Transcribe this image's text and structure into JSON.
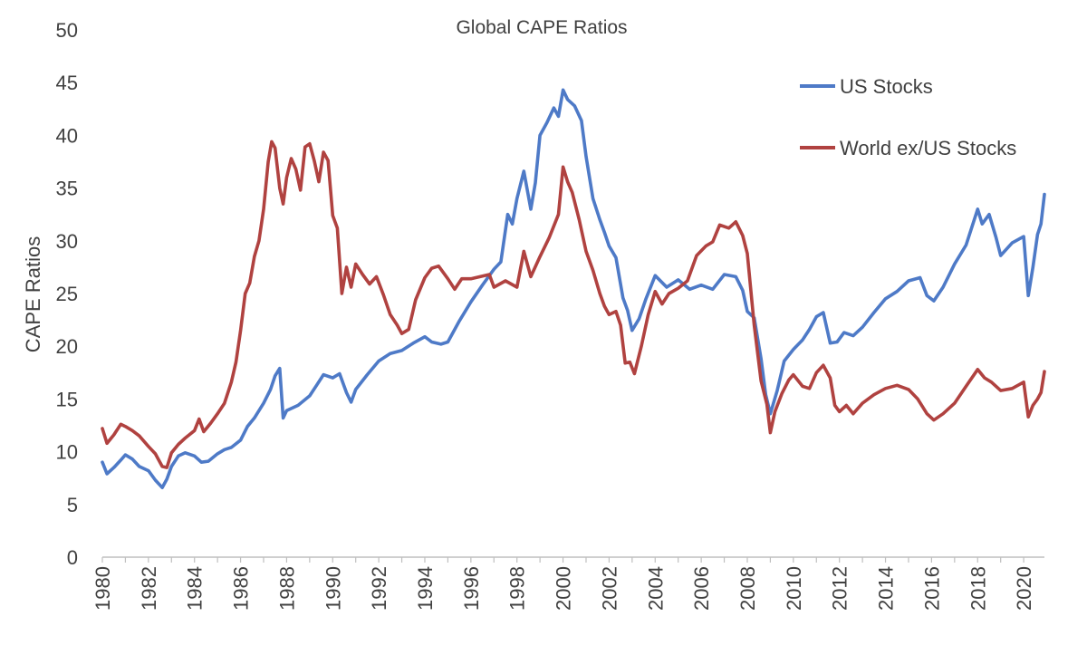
{
  "chart_data": {
    "type": "line",
    "title": "Global CAPE Ratios",
    "ylabel": "CAPE Ratios",
    "xlabel": "",
    "xlim": [
      1980,
      2020.9
    ],
    "ylim": [
      0,
      50
    ],
    "yticks": [
      "0",
      "5",
      "10",
      "15",
      "20",
      "25",
      "30",
      "35",
      "40",
      "45",
      "50"
    ],
    "xticks": [
      "1980",
      "1982",
      "1984",
      "1986",
      "1988",
      "1990",
      "1992",
      "1994",
      "1996",
      "1998",
      "2000",
      "2002",
      "2004",
      "2006",
      "2008",
      "2010",
      "2012",
      "2014",
      "2016",
      "2018",
      "2020"
    ],
    "grid": false,
    "legend_position": "top-right",
    "series": [
      {
        "name": "US Stocks",
        "color": "#4E7AC7",
        "points": [
          [
            1980.0,
            9.0
          ],
          [
            1980.2,
            7.9
          ],
          [
            1980.5,
            8.5
          ],
          [
            1980.8,
            9.2
          ],
          [
            1981.0,
            9.7
          ],
          [
            1981.3,
            9.3
          ],
          [
            1981.6,
            8.6
          ],
          [
            1982.0,
            8.2
          ],
          [
            1982.3,
            7.3
          ],
          [
            1982.6,
            6.6
          ],
          [
            1982.8,
            7.4
          ],
          [
            1983.0,
            8.6
          ],
          [
            1983.3,
            9.6
          ],
          [
            1983.6,
            9.9
          ],
          [
            1984.0,
            9.6
          ],
          [
            1984.3,
            9.0
          ],
          [
            1984.6,
            9.1
          ],
          [
            1985.0,
            9.8
          ],
          [
            1985.3,
            10.2
          ],
          [
            1985.6,
            10.4
          ],
          [
            1986.0,
            11.1
          ],
          [
            1986.3,
            12.4
          ],
          [
            1986.6,
            13.2
          ],
          [
            1987.0,
            14.6
          ],
          [
            1987.3,
            15.9
          ],
          [
            1987.5,
            17.2
          ],
          [
            1987.7,
            17.9
          ],
          [
            1987.85,
            13.2
          ],
          [
            1988.0,
            13.9
          ],
          [
            1988.5,
            14.4
          ],
          [
            1989.0,
            15.3
          ],
          [
            1989.3,
            16.3
          ],
          [
            1989.6,
            17.3
          ],
          [
            1990.0,
            17.0
          ],
          [
            1990.3,
            17.4
          ],
          [
            1990.6,
            15.6
          ],
          [
            1990.8,
            14.7
          ],
          [
            1991.0,
            15.9
          ],
          [
            1991.5,
            17.3
          ],
          [
            1992.0,
            18.6
          ],
          [
            1992.5,
            19.3
          ],
          [
            1993.0,
            19.6
          ],
          [
            1993.5,
            20.3
          ],
          [
            1994.0,
            20.9
          ],
          [
            1994.3,
            20.4
          ],
          [
            1994.7,
            20.2
          ],
          [
            1995.0,
            20.4
          ],
          [
            1995.5,
            22.4
          ],
          [
            1996.0,
            24.2
          ],
          [
            1996.5,
            25.8
          ],
          [
            1997.0,
            27.3
          ],
          [
            1997.3,
            28.0
          ],
          [
            1997.6,
            32.5
          ],
          [
            1997.8,
            31.6
          ],
          [
            1998.0,
            34.0
          ],
          [
            1998.3,
            36.6
          ],
          [
            1998.6,
            33.0
          ],
          [
            1998.8,
            35.5
          ],
          [
            1999.0,
            40.0
          ],
          [
            1999.3,
            41.2
          ],
          [
            1999.6,
            42.6
          ],
          [
            1999.8,
            41.8
          ],
          [
            2000.0,
            44.3
          ],
          [
            2000.2,
            43.4
          ],
          [
            2000.5,
            42.8
          ],
          [
            2000.8,
            41.4
          ],
          [
            2001.0,
            38.0
          ],
          [
            2001.3,
            34.0
          ],
          [
            2001.6,
            32.0
          ],
          [
            2001.8,
            30.8
          ],
          [
            2002.0,
            29.5
          ],
          [
            2002.3,
            28.4
          ],
          [
            2002.6,
            24.6
          ],
          [
            2002.8,
            23.4
          ],
          [
            2003.0,
            21.5
          ],
          [
            2003.3,
            22.6
          ],
          [
            2003.6,
            24.5
          ],
          [
            2004.0,
            26.7
          ],
          [
            2004.5,
            25.6
          ],
          [
            2005.0,
            26.3
          ],
          [
            2005.5,
            25.4
          ],
          [
            2006.0,
            25.8
          ],
          [
            2006.5,
            25.4
          ],
          [
            2007.0,
            26.8
          ],
          [
            2007.5,
            26.6
          ],
          [
            2007.8,
            25.3
          ],
          [
            2008.0,
            23.3
          ],
          [
            2008.3,
            22.7
          ],
          [
            2008.6,
            18.8
          ],
          [
            2008.8,
            15.4
          ],
          [
            2009.0,
            13.6
          ],
          [
            2009.3,
            15.8
          ],
          [
            2009.6,
            18.6
          ],
          [
            2010.0,
            19.7
          ],
          [
            2010.4,
            20.6
          ],
          [
            2010.7,
            21.6
          ],
          [
            2011.0,
            22.8
          ],
          [
            2011.3,
            23.2
          ],
          [
            2011.6,
            20.3
          ],
          [
            2011.9,
            20.4
          ],
          [
            2012.2,
            21.3
          ],
          [
            2012.6,
            21.0
          ],
          [
            2013.0,
            21.8
          ],
          [
            2013.5,
            23.2
          ],
          [
            2014.0,
            24.5
          ],
          [
            2014.5,
            25.2
          ],
          [
            2015.0,
            26.2
          ],
          [
            2015.5,
            26.5
          ],
          [
            2015.8,
            24.8
          ],
          [
            2016.1,
            24.3
          ],
          [
            2016.5,
            25.6
          ],
          [
            2017.0,
            27.8
          ],
          [
            2017.5,
            29.6
          ],
          [
            2018.0,
            33.0
          ],
          [
            2018.2,
            31.6
          ],
          [
            2018.5,
            32.5
          ],
          [
            2018.8,
            30.3
          ],
          [
            2019.0,
            28.6
          ],
          [
            2019.5,
            29.8
          ],
          [
            2020.0,
            30.4
          ],
          [
            2020.2,
            24.8
          ],
          [
            2020.4,
            27.5
          ],
          [
            2020.6,
            30.6
          ],
          [
            2020.75,
            31.6
          ],
          [
            2020.9,
            34.4
          ]
        ]
      },
      {
        "name": "World ex/US Stocks",
        "color": "#B04240",
        "points": [
          [
            1980.0,
            12.2
          ],
          [
            1980.2,
            10.8
          ],
          [
            1980.5,
            11.6
          ],
          [
            1980.8,
            12.6
          ],
          [
            1981.0,
            12.4
          ],
          [
            1981.3,
            12.0
          ],
          [
            1981.6,
            11.5
          ],
          [
            1982.0,
            10.5
          ],
          [
            1982.3,
            9.8
          ],
          [
            1982.6,
            8.6
          ],
          [
            1982.8,
            8.5
          ],
          [
            1983.0,
            9.9
          ],
          [
            1983.3,
            10.7
          ],
          [
            1983.6,
            11.3
          ],
          [
            1984.0,
            12.0
          ],
          [
            1984.2,
            13.1
          ],
          [
            1984.4,
            11.9
          ],
          [
            1984.7,
            12.7
          ],
          [
            1985.0,
            13.6
          ],
          [
            1985.3,
            14.6
          ],
          [
            1985.6,
            16.6
          ],
          [
            1985.8,
            18.5
          ],
          [
            1986.0,
            21.5
          ],
          [
            1986.2,
            25.0
          ],
          [
            1986.4,
            26.0
          ],
          [
            1986.6,
            28.5
          ],
          [
            1986.8,
            30.0
          ],
          [
            1987.0,
            33.0
          ],
          [
            1987.2,
            37.5
          ],
          [
            1987.35,
            39.4
          ],
          [
            1987.5,
            38.8
          ],
          [
            1987.7,
            35.0
          ],
          [
            1987.85,
            33.5
          ],
          [
            1988.0,
            36.0
          ],
          [
            1988.2,
            37.8
          ],
          [
            1988.4,
            36.8
          ],
          [
            1988.6,
            34.8
          ],
          [
            1988.8,
            38.9
          ],
          [
            1989.0,
            39.2
          ],
          [
            1989.2,
            37.6
          ],
          [
            1989.4,
            35.6
          ],
          [
            1989.6,
            38.4
          ],
          [
            1989.8,
            37.6
          ],
          [
            1990.0,
            32.4
          ],
          [
            1990.2,
            31.2
          ],
          [
            1990.4,
            25.0
          ],
          [
            1990.6,
            27.5
          ],
          [
            1990.8,
            25.6
          ],
          [
            1991.0,
            27.8
          ],
          [
            1991.3,
            26.8
          ],
          [
            1991.6,
            25.9
          ],
          [
            1991.9,
            26.6
          ],
          [
            1992.2,
            24.9
          ],
          [
            1992.5,
            23.0
          ],
          [
            1992.8,
            22.0
          ],
          [
            1993.0,
            21.2
          ],
          [
            1993.3,
            21.6
          ],
          [
            1993.6,
            24.4
          ],
          [
            1994.0,
            26.5
          ],
          [
            1994.3,
            27.4
          ],
          [
            1994.6,
            27.6
          ],
          [
            1995.0,
            26.4
          ],
          [
            1995.3,
            25.4
          ],
          [
            1995.6,
            26.4
          ],
          [
            1996.0,
            26.4
          ],
          [
            1996.4,
            26.6
          ],
          [
            1996.8,
            26.8
          ],
          [
            1997.0,
            25.6
          ],
          [
            1997.5,
            26.2
          ],
          [
            1998.0,
            25.6
          ],
          [
            1998.3,
            29.0
          ],
          [
            1998.6,
            26.6
          ],
          [
            1999.0,
            28.5
          ],
          [
            1999.4,
            30.3
          ],
          [
            1999.8,
            32.5
          ],
          [
            2000.0,
            37.0
          ],
          [
            2000.2,
            35.6
          ],
          [
            2000.4,
            34.6
          ],
          [
            2000.7,
            32.0
          ],
          [
            2001.0,
            29.0
          ],
          [
            2001.3,
            27.2
          ],
          [
            2001.6,
            25.0
          ],
          [
            2001.8,
            23.8
          ],
          [
            2002.0,
            23.0
          ],
          [
            2002.3,
            23.3
          ],
          [
            2002.5,
            22.0
          ],
          [
            2002.7,
            18.4
          ],
          [
            2002.9,
            18.5
          ],
          [
            2003.1,
            17.4
          ],
          [
            2003.4,
            20.0
          ],
          [
            2003.7,
            23.0
          ],
          [
            2004.0,
            25.2
          ],
          [
            2004.3,
            24.0
          ],
          [
            2004.6,
            25.0
          ],
          [
            2005.0,
            25.5
          ],
          [
            2005.4,
            26.2
          ],
          [
            2005.8,
            28.6
          ],
          [
            2006.2,
            29.5
          ],
          [
            2006.5,
            29.9
          ],
          [
            2006.8,
            31.5
          ],
          [
            2007.2,
            31.2
          ],
          [
            2007.5,
            31.8
          ],
          [
            2007.8,
            30.5
          ],
          [
            2008.0,
            28.8
          ],
          [
            2008.3,
            22.0
          ],
          [
            2008.6,
            16.7
          ],
          [
            2008.85,
            14.5
          ],
          [
            2009.0,
            11.8
          ],
          [
            2009.2,
            13.8
          ],
          [
            2009.5,
            15.5
          ],
          [
            2009.8,
            16.8
          ],
          [
            2010.0,
            17.3
          ],
          [
            2010.4,
            16.2
          ],
          [
            2010.7,
            16.0
          ],
          [
            2011.0,
            17.5
          ],
          [
            2011.3,
            18.2
          ],
          [
            2011.6,
            17.0
          ],
          [
            2011.8,
            14.4
          ],
          [
            2012.0,
            13.8
          ],
          [
            2012.3,
            14.4
          ],
          [
            2012.6,
            13.6
          ],
          [
            2013.0,
            14.6
          ],
          [
            2013.5,
            15.4
          ],
          [
            2014.0,
            16.0
          ],
          [
            2014.5,
            16.3
          ],
          [
            2015.0,
            15.9
          ],
          [
            2015.4,
            15.0
          ],
          [
            2015.8,
            13.6
          ],
          [
            2016.1,
            13.0
          ],
          [
            2016.5,
            13.6
          ],
          [
            2017.0,
            14.6
          ],
          [
            2017.5,
            16.2
          ],
          [
            2018.0,
            17.8
          ],
          [
            2018.3,
            17.0
          ],
          [
            2018.6,
            16.6
          ],
          [
            2019.0,
            15.8
          ],
          [
            2019.5,
            16.0
          ],
          [
            2020.0,
            16.6
          ],
          [
            2020.2,
            13.3
          ],
          [
            2020.4,
            14.4
          ],
          [
            2020.6,
            15.0
          ],
          [
            2020.75,
            15.6
          ],
          [
            2020.9,
            17.6
          ]
        ]
      }
    ]
  }
}
